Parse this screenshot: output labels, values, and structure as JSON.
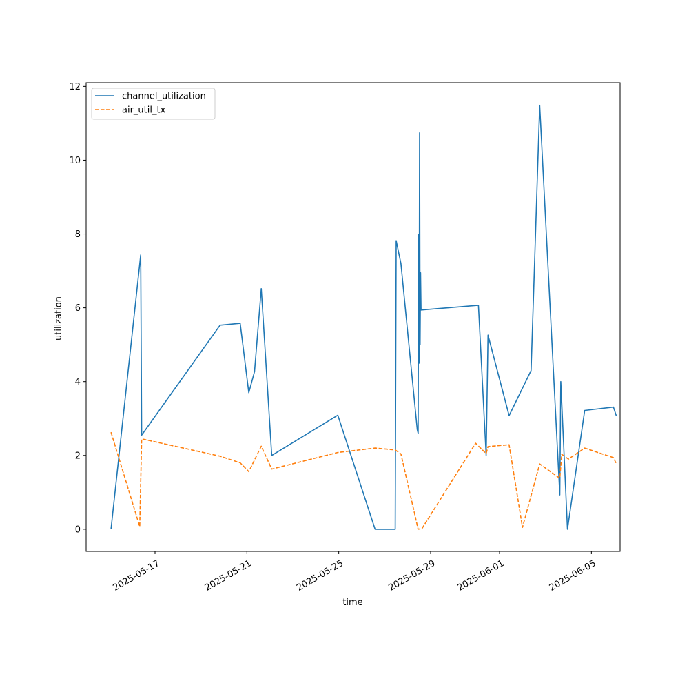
{
  "chart_data": {
    "type": "line",
    "title": "",
    "xlabel": "time",
    "ylabel": "utilization",
    "x_tick_labels": [
      "2025-05-17",
      "2025-05-21",
      "2025-05-25",
      "2025-05-29",
      "2025-06-01",
      "2025-06-05"
    ],
    "y_ticks": [
      0,
      2,
      4,
      6,
      8,
      10,
      12
    ],
    "xlim": [
      "2025-05-14 00:00",
      "2025-06-06 06:00"
    ],
    "ylim": [
      -0.6,
      12.1
    ],
    "grid": false,
    "legend": "top-left",
    "series": [
      {
        "name": "channel_utilization",
        "color": "#1f77b4",
        "style": "solid",
        "points": [
          [
            "2025-05-15 02:00",
            0.0
          ],
          [
            "2025-05-16 09:00",
            7.43
          ],
          [
            "2025-05-16 10:00",
            2.55
          ],
          [
            "2025-05-19 20:00",
            5.53
          ],
          [
            "2025-05-20 17:00",
            5.58
          ],
          [
            "2025-05-21 02:00",
            3.7
          ],
          [
            "2025-05-21 08:00",
            4.27
          ],
          [
            "2025-05-21 15:00",
            6.52
          ],
          [
            "2025-05-22 02:00",
            2.0
          ],
          [
            "2025-05-24 23:00",
            3.09
          ],
          [
            "2025-05-26 14:00",
            0.0
          ],
          [
            "2025-05-27 11:00",
            0.0
          ],
          [
            "2025-05-27 12:00",
            7.82
          ],
          [
            "2025-05-27 17:00",
            7.2
          ],
          [
            "2025-05-28 10:00",
            2.7
          ],
          [
            "2025-05-28 11:00",
            2.6
          ],
          [
            "2025-05-28 11:30",
            7.98
          ],
          [
            "2025-05-28 12:00",
            4.5
          ],
          [
            "2025-05-28 12:30",
            10.74
          ],
          [
            "2025-05-28 13:00",
            5.0
          ],
          [
            "2025-05-28 13:30",
            6.95
          ],
          [
            "2025-05-28 14:00",
            5.94
          ],
          [
            "2025-05-31 02:00",
            6.07
          ],
          [
            "2025-05-31 10:00",
            2.0
          ],
          [
            "2025-05-31 12:00",
            5.26
          ],
          [
            "2025-06-01 10:00",
            3.08
          ],
          [
            "2025-06-02 09:00",
            4.3
          ],
          [
            "2025-06-02 18:00",
            11.49
          ],
          [
            "2025-06-03 15:00",
            0.93
          ],
          [
            "2025-06-03 16:00",
            4.0
          ],
          [
            "2025-06-03 23:00",
            0.0
          ],
          [
            "2025-06-04 17:00",
            3.22
          ],
          [
            "2025-06-05 23:00",
            3.31
          ],
          [
            "2025-06-06 02:00",
            3.08
          ]
        ]
      },
      {
        "name": "air_util_tx",
        "color": "#ff7f0e",
        "style": "dashed",
        "points": [
          [
            "2025-05-15 02:00",
            2.63
          ],
          [
            "2025-05-16 08:00",
            0.07
          ],
          [
            "2025-05-16 10:00",
            2.45
          ],
          [
            "2025-05-19 20:00",
            1.98
          ],
          [
            "2025-05-20 17:00",
            1.8
          ],
          [
            "2025-05-21 02:00",
            1.56
          ],
          [
            "2025-05-21 15:00",
            2.25
          ],
          [
            "2025-05-22 02:00",
            1.63
          ],
          [
            "2025-05-24 23:00",
            2.08
          ],
          [
            "2025-05-26 14:00",
            2.2
          ],
          [
            "2025-05-27 11:00",
            2.15
          ],
          [
            "2025-05-27 17:00",
            2.04
          ],
          [
            "2025-05-28 11:00",
            0.0
          ],
          [
            "2025-05-28 15:00",
            0.02
          ],
          [
            "2025-05-30 23:00",
            2.33
          ],
          [
            "2025-05-31 10:00",
            2.05
          ],
          [
            "2025-05-31 12:00",
            2.24
          ],
          [
            "2025-06-01 10:00",
            2.29
          ],
          [
            "2025-06-02 00:00",
            0.05
          ],
          [
            "2025-06-02 18:00",
            1.77
          ],
          [
            "2025-06-03 15:00",
            1.38
          ],
          [
            "2025-06-03 17:00",
            2.03
          ],
          [
            "2025-06-04 00:00",
            1.9
          ],
          [
            "2025-06-04 17:00",
            2.2
          ],
          [
            "2025-06-05 23:00",
            1.94
          ],
          [
            "2025-06-06 02:00",
            1.78
          ]
        ]
      }
    ]
  }
}
